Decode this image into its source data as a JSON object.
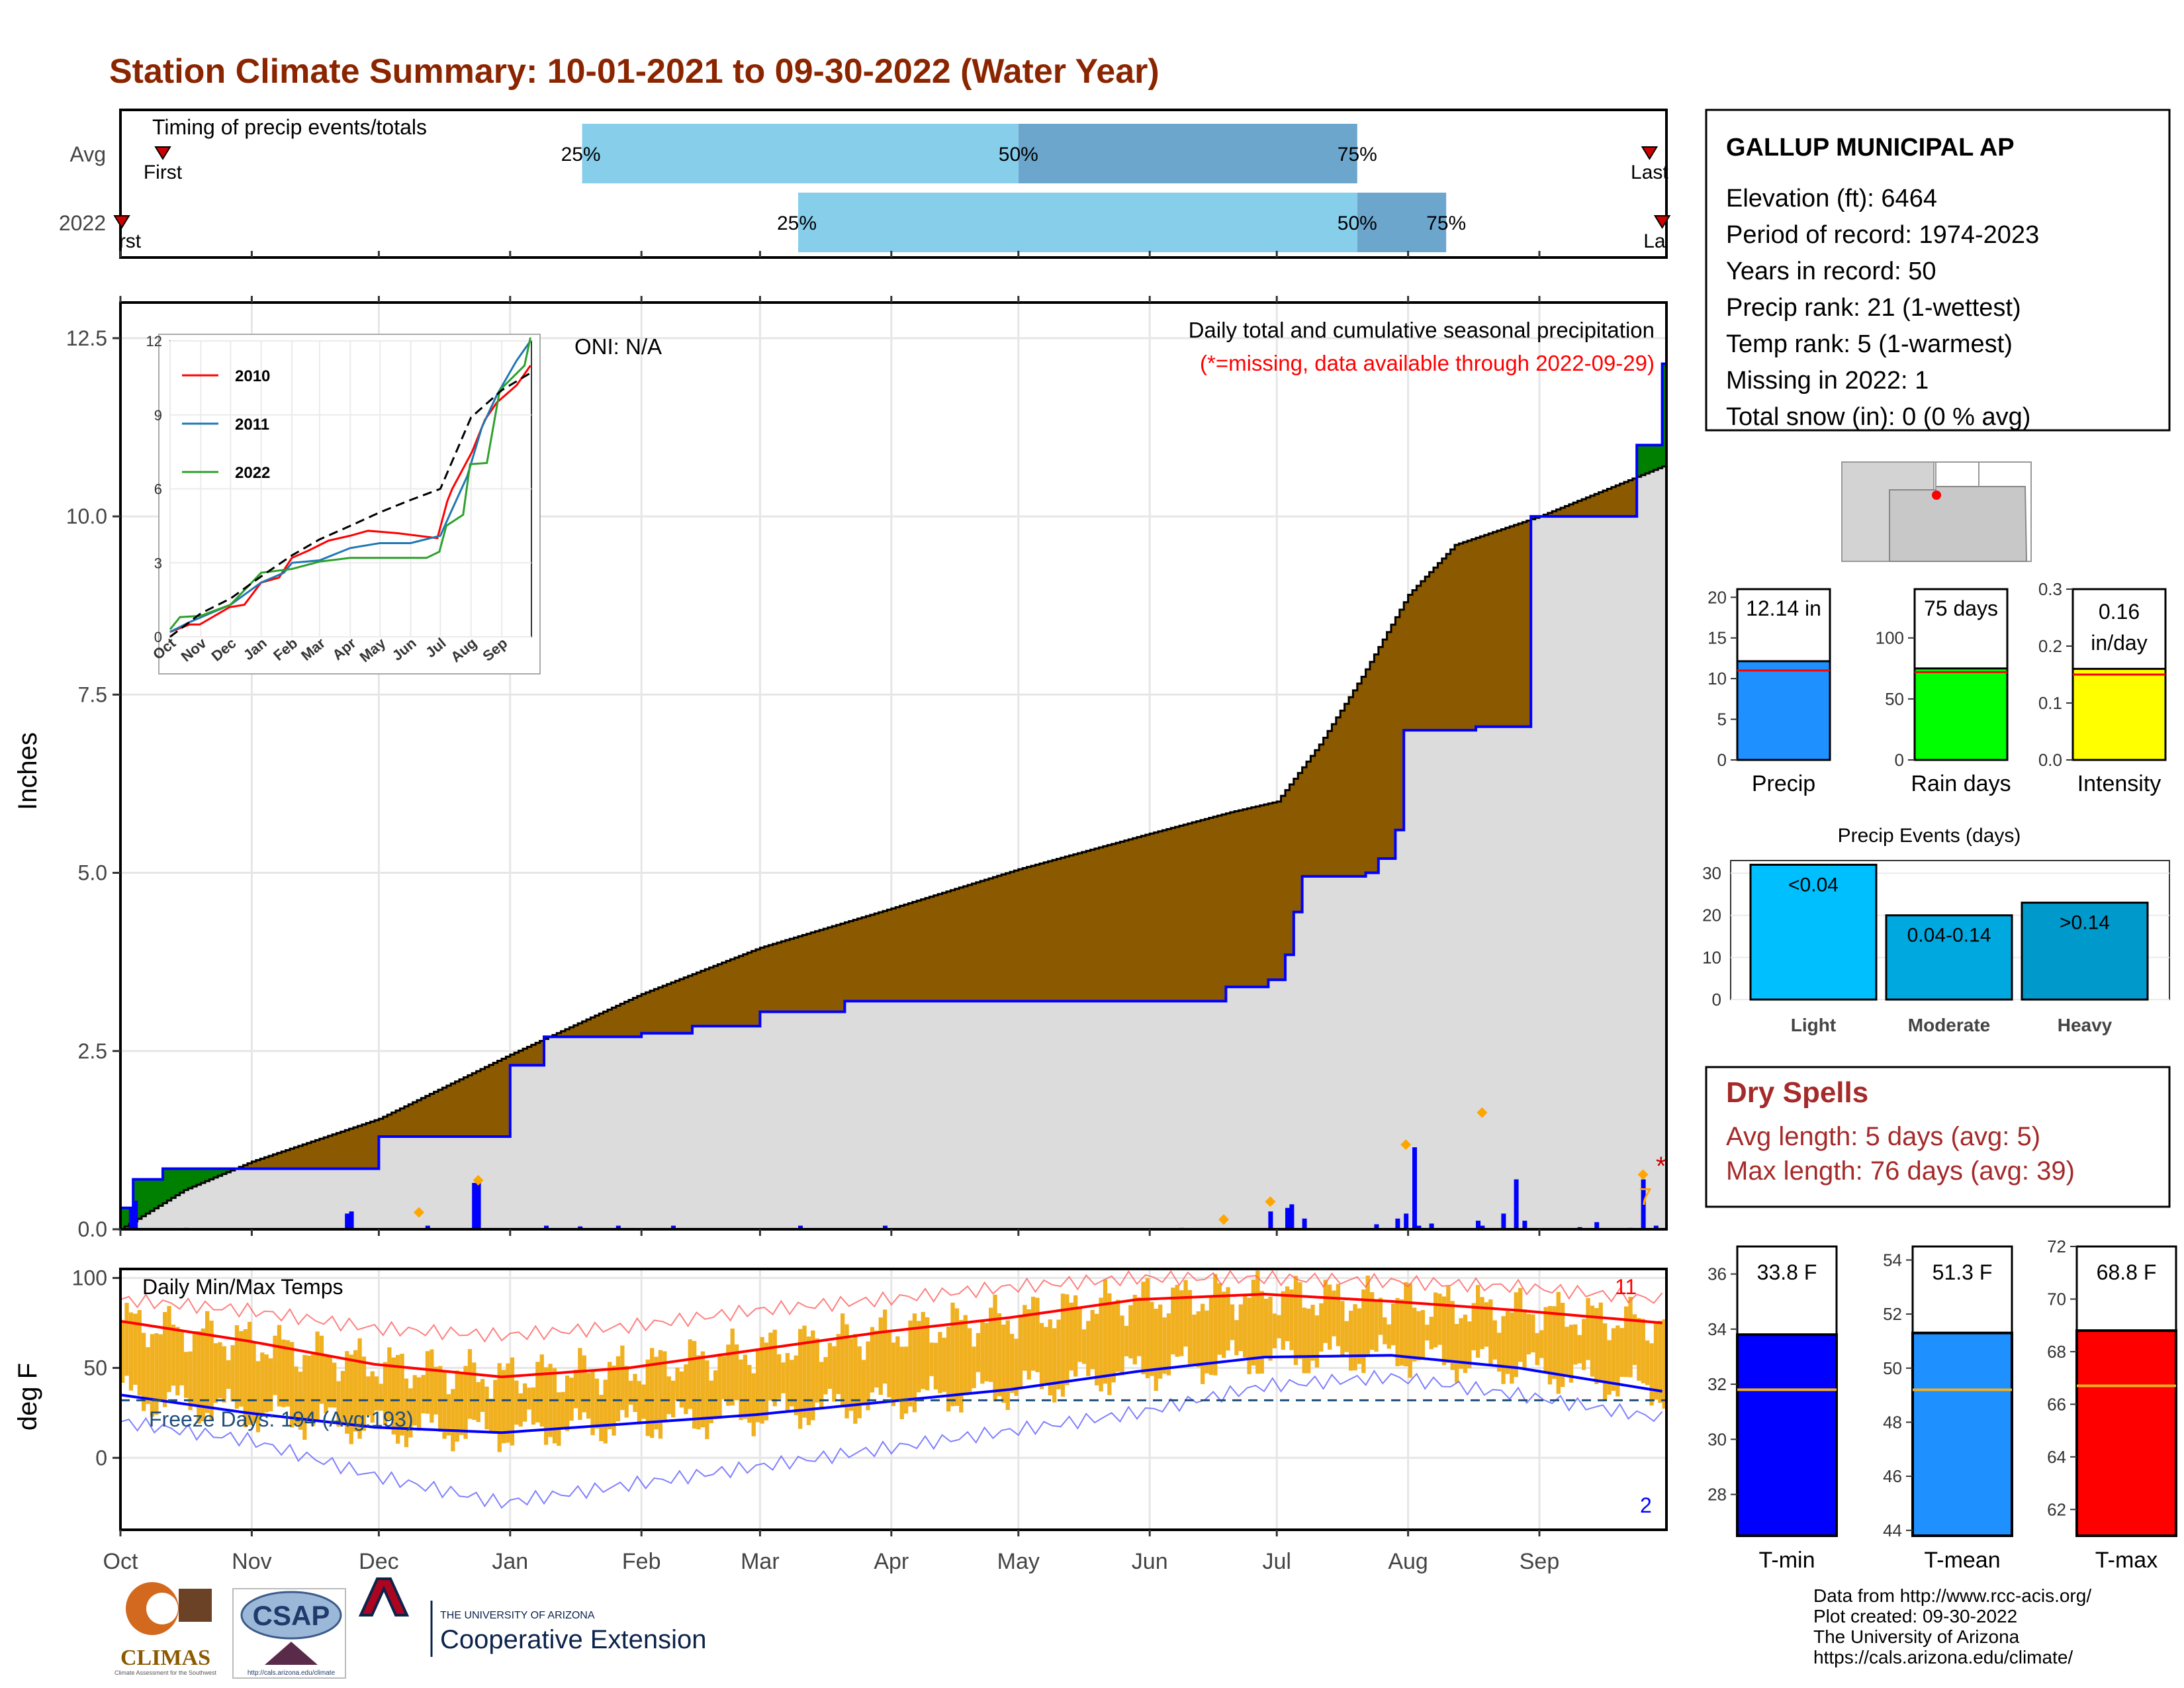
{
  "title": "Station Climate Summary: 10-01-2021 to 09-30-2022 (Water Year)",
  "colors": {
    "title": "#8B2500",
    "wet": "#008000",
    "dry": "#8B5A00",
    "fill": "#DCDCDC",
    "cumline": "#0000FF",
    "light_q": "#87CEEB",
    "dark_q": "#6CA6CD",
    "tmax": "#FF0000",
    "tmin": "#0000FF",
    "range_bar": "#F0B020",
    "dryspell": "#A52A2A"
  },
  "months": [
    "Oct",
    "Nov",
    "Dec",
    "Jan",
    "Feb",
    "Mar",
    "Apr",
    "May",
    "Jun",
    "Jul",
    "Aug",
    "Sep"
  ],
  "month_start_days": [
    0,
    31,
    61,
    92,
    123,
    151,
    182,
    212,
    243,
    273,
    304,
    335
  ],
  "timing": {
    "title": "Timing of precip events/totals",
    "rows": [
      {
        "label": "Avg",
        "first_label": "First",
        "last_label": "Last",
        "first_day": 10,
        "last_day": 361,
        "q25": 109,
        "q50": 212,
        "q75": 292,
        "q25_label": "25%",
        "q50_label": "50%",
        "q75_label": "75%"
      },
      {
        "label": "2022",
        "first_label": "First",
        "last_label": "Last",
        "first_day": 0,
        "last_day": 364,
        "q25": 160,
        "q50": 292,
        "q75": 313,
        "q25_label": "25%",
        "q50_label": "50%",
        "q75_label": "75%"
      }
    ]
  },
  "main_chart": {
    "ylabel": "Inches",
    "ylim": [
      0,
      13.0
    ],
    "yticks": [
      0.0,
      2.5,
      5.0,
      7.5,
      10.0,
      12.5
    ],
    "ytick_labels": [
      "0.0",
      "2.5",
      "5.0",
      "7.5",
      "10.0",
      "12.5"
    ],
    "oni": "ONI: N/A",
    "note1": "Daily total and cumulative seasonal precipitation",
    "note2": "(*=missing, data available through 2022-09-29)",
    "missing_marker": "*",
    "extreme_count": "7"
  },
  "chart_data": [
    {
      "type": "area",
      "title": "Daily total and cumulative seasonal precipitation",
      "xlabel": "",
      "ylabel": "Inches",
      "ylim": [
        0,
        13.0
      ],
      "avg_cumulative": {
        "x": [
          0,
          15,
          31,
          61,
          92,
          123,
          151,
          182,
          212,
          243,
          262,
          273,
          283,
          293,
          304,
          315,
          335,
          364
        ],
        "y": [
          0.0,
          0.55,
          0.95,
          1.55,
          2.45,
          3.3,
          3.95,
          4.5,
          5.05,
          5.55,
          5.85,
          6.0,
          6.8,
          7.75,
          8.9,
          9.6,
          10.0,
          10.7
        ]
      },
      "obs_cumulative": {
        "x": [
          0,
          3,
          10,
          31,
          55,
          61,
          83,
          92,
          100,
          123,
          135,
          151,
          171,
          180,
          201,
          210,
          240,
          259,
          261,
          271,
          275,
          277,
          279,
          291,
          294,
          297,
          301,
          303,
          320,
          322,
          333,
          336,
          358,
          364
        ],
        "y": [
          0.3,
          0.7,
          0.85,
          0.85,
          0.85,
          1.3,
          1.3,
          2.3,
          2.7,
          2.75,
          2.85,
          3.05,
          3.2,
          3.2,
          3.2,
          3.2,
          3.2,
          3.2,
          3.4,
          3.5,
          3.85,
          4.45,
          4.95,
          4.95,
          5.0,
          5.2,
          5.6,
          7.0,
          7.05,
          7.05,
          10.0,
          10.0,
          11.0,
          12.14
        ]
      },
      "daily_bars": {
        "x": [
          2,
          3,
          15,
          53,
          54,
          72,
          83,
          84,
          100,
          108,
          117,
          130,
          160,
          180,
          250,
          271,
          275,
          276,
          279,
          296,
          301,
          303,
          305,
          306,
          309,
          320,
          321,
          326,
          329,
          331,
          344,
          348,
          356,
          359,
          362
        ],
        "y": [
          0.3,
          0.4,
          0.02,
          0.22,
          0.25,
          0.05,
          0.65,
          0.7,
          0.05,
          0.04,
          0.05,
          0.05,
          0.05,
          0.05,
          0.02,
          0.25,
          0.3,
          0.35,
          0.15,
          0.07,
          0.15,
          0.22,
          1.15,
          0.05,
          0.08,
          0.12,
          0.05,
          0.22,
          0.7,
          0.12,
          0.03,
          0.1,
          0.02,
          0.7,
          0.05
        ]
      },
      "extreme_markers": {
        "x": [
          70,
          84,
          260,
          271,
          303,
          321,
          359
        ],
        "y": [
          0.2,
          0.65,
          0.1,
          0.35,
          1.15,
          1.6,
          0.73
        ]
      }
    },
    {
      "type": "line",
      "title": "",
      "xlabel": "",
      "ylabel": "",
      "ylim": [
        0,
        12
      ],
      "x_ticks": [
        "Oct",
        "Nov",
        "Dec",
        "Jan",
        "Feb",
        "Mar",
        "Apr",
        "May",
        "Jun",
        "Jul",
        "Aug",
        "Sep"
      ],
      "y_ticks": [
        0,
        3,
        6,
        9,
        12
      ],
      "series": [
        {
          "name": "2010",
          "color": "#FF0000",
          "x": [
            0,
            20,
            30,
            60,
            75,
            92,
            110,
            123,
            140,
            160,
            182,
            200,
            230,
            270,
            280,
            285,
            305,
            318,
            330,
            350,
            364
          ],
          "y": [
            0.2,
            0.5,
            0.5,
            1.2,
            1.3,
            2.2,
            2.4,
            3.2,
            3.5,
            3.9,
            4.1,
            4.3,
            4.2,
            4.0,
            5.5,
            6.0,
            7.5,
            8.8,
            9.5,
            10.2,
            11.0
          ]
        },
        {
          "name": "2011",
          "color": "#1F77B4",
          "x": [
            0,
            20,
            61,
            92,
            115,
            123,
            151,
            182,
            212,
            243,
            273,
            283,
            300,
            315,
            330,
            350,
            364
          ],
          "y": [
            0.2,
            0.6,
            1.3,
            2.2,
            2.6,
            3.0,
            3.1,
            3.6,
            3.8,
            3.8,
            4.1,
            5.0,
            6.5,
            8.5,
            9.8,
            11.2,
            12.0
          ]
        },
        {
          "name": "2022",
          "color": "#2CA02C",
          "x": [
            0,
            10,
            31,
            61,
            92,
            123,
            151,
            182,
            212,
            243,
            259,
            272,
            279,
            296,
            303,
            320,
            333,
            358,
            364
          ],
          "y": [
            0.3,
            0.8,
            0.85,
            1.3,
            2.6,
            2.75,
            3.05,
            3.2,
            3.2,
            3.2,
            3.2,
            3.45,
            4.5,
            4.95,
            7.0,
            7.05,
            10.0,
            11.0,
            12.14
          ]
        },
        {
          "name": "",
          "color": "#000000",
          "x": [
            0,
            31,
            61,
            92,
            123,
            151,
            182,
            212,
            243,
            273,
            304,
            335,
            364
          ],
          "y": [
            0.0,
            0.95,
            1.55,
            2.45,
            3.3,
            3.95,
            4.5,
            5.05,
            5.55,
            6.0,
            8.9,
            10.0,
            10.7
          ]
        }
      ]
    },
    {
      "type": "bar",
      "title": "Daily Min/Max Temps",
      "ylabel": "deg F",
      "ylim": [
        -40,
        105
      ],
      "yticks": [
        0,
        50,
        100
      ],
      "normal_max": {
        "x": [
          0,
          30,
          60,
          90,
          120,
          150,
          180,
          210,
          240,
          270,
          300,
          330,
          364
        ],
        "y": [
          76,
          65,
          52,
          45,
          50,
          60,
          70,
          78,
          88,
          91,
          87,
          82,
          75
        ]
      },
      "normal_min": {
        "x": [
          0,
          30,
          60,
          90,
          120,
          150,
          180,
          210,
          240,
          270,
          300,
          330,
          364
        ],
        "y": [
          35,
          25,
          17,
          14,
          19,
          24,
          31,
          38,
          48,
          56,
          57,
          50,
          37
        ]
      },
      "record_max": {
        "x": [
          0,
          30,
          60,
          90,
          120,
          150,
          180,
          210,
          240,
          270,
          300,
          330,
          364
        ],
        "y": [
          88,
          82,
          72,
          68,
          73,
          82,
          88,
          95,
          100,
          100,
          98,
          95,
          88
        ]
      },
      "record_min": {
        "x": [
          0,
          30,
          60,
          90,
          120,
          150,
          180,
          210,
          240,
          270,
          300,
          330,
          364
        ],
        "y": [
          20,
          10,
          -10,
          -25,
          -15,
          -5,
          5,
          15,
          25,
          40,
          45,
          35,
          22
        ]
      },
      "freeze_line": 32,
      "freeze_label": "Freeze Days: 194 (Avg:193)",
      "record_high_count": "11",
      "record_low_count": "2"
    },
    {
      "type": "bar",
      "title": "Precip Events (days)",
      "categories": [
        "Light",
        "Moderate",
        "Heavy"
      ],
      "values": [
        32,
        20,
        23
      ],
      "value_labels": [
        "<0.04",
        "0.04-0.14",
        ">0.14"
      ],
      "ylim": [
        0,
        33
      ],
      "yticks": [
        0,
        10,
        20,
        30
      ]
    }
  ],
  "station": {
    "name": "GALLUP MUNICIPAL AP",
    "lines": [
      "Elevation (ft): 6464",
      "Period of record: 1974-2023",
      "Years in record: 50",
      "Precip rank: 21 (1-wettest)",
      "Temp rank: 5 (1-warmest)",
      "Missing in 2022: 1",
      "Total snow (in): 0 (0 % avg)"
    ]
  },
  "small_bars": [
    {
      "label": "Precip",
      "value": 12.14,
      "value_text": "12.14 in",
      "avg": 11.0,
      "ylim": [
        0,
        21
      ],
      "yticks": [
        "0",
        "5",
        "10",
        "15",
        "20"
      ],
      "ytick_vals": [
        0,
        5,
        10,
        15,
        20
      ],
      "color": "#1E90FF",
      "avg_color": "#FF0000"
    },
    {
      "label": "Rain days",
      "value": 75,
      "value_text": "75 days",
      "avg": 72,
      "ylim": [
        0,
        140
      ],
      "yticks": [
        "0",
        "50",
        "100"
      ],
      "ytick_vals": [
        0,
        50,
        100
      ],
      "color": "#00FF00",
      "avg_color": "#FF0000"
    },
    {
      "label": "Intensity",
      "value": 0.16,
      "value_text": "0.16 in/day",
      "avg": 0.15,
      "ylim": [
        0,
        0.3
      ],
      "yticks": [
        "0.0",
        "0.1",
        "0.2",
        "0.3"
      ],
      "ytick_vals": [
        0,
        0.1,
        0.2,
        0.3
      ],
      "color": "#FFFF00",
      "avg_color": "#FF0000"
    }
  ],
  "dry_spells": {
    "title": "Dry Spells",
    "avg_line": "Avg length: 5 days (avg: 5)",
    "max_line": "Max length: 76 days (avg: 39)"
  },
  "temp_bars": [
    {
      "label": "T-min",
      "value_text": "33.8 F",
      "value": 33.8,
      "avg": 31.8,
      "ylim": [
        26.5,
        37
      ],
      "yticks": [
        "28",
        "30",
        "32",
        "34",
        "36"
      ],
      "ytick_vals": [
        28,
        30,
        32,
        34,
        36
      ],
      "color": "#0000FF"
    },
    {
      "label": "T-mean",
      "value_text": "51.3 F",
      "value": 51.3,
      "avg": 49.2,
      "ylim": [
        43.8,
        54.5
      ],
      "yticks": [
        "44",
        "46",
        "48",
        "50",
        "52",
        "54"
      ],
      "ytick_vals": [
        44,
        46,
        48,
        50,
        52,
        54
      ],
      "color": "#1E90FF"
    },
    {
      "label": "T-max",
      "value_text": "68.8 F",
      "value": 68.8,
      "avg": 66.7,
      "ylim": [
        61,
        72
      ],
      "yticks": [
        "62",
        "64",
        "66",
        "68",
        "70",
        "72"
      ],
      "ytick_vals": [
        62,
        64,
        66,
        68,
        70,
        72
      ],
      "color": "#FF0000"
    }
  ],
  "footer": {
    "lines": [
      "Data from http://www.rcc-acis.org/",
      "Plot created: 09-30-2022",
      "The University of Arizona",
      "https://cals.arizona.edu/climate/"
    ]
  },
  "logos": {
    "climas": "CLIMAS",
    "climas_sub": "Climate Assessment for the Southwest",
    "csap": "CSAP",
    "csap_url": "http://cals.arizona.edu/climate",
    "ua_small": "THE UNIVERSITY OF ARIZONA",
    "ua_big": "Cooperative Extension"
  }
}
